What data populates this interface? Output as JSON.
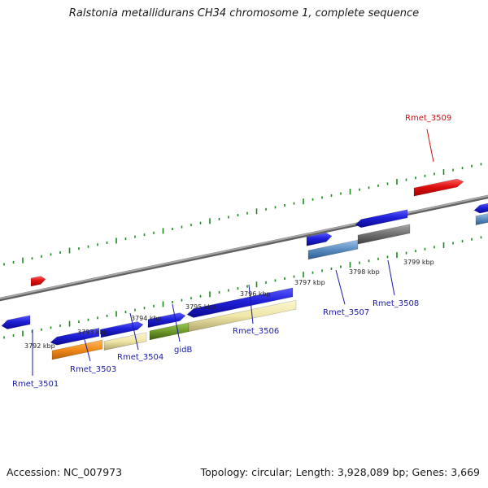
{
  "title": "Ralstonia metallidurans CH34 chromosome 1, complete sequence",
  "footer": {
    "accession": "Accession: NC_007973",
    "summary": "Topology: circular; Length: 3,928,089 bp; Genes: 3,669"
  },
  "colors": {
    "backbone": "#8c8c8c",
    "tick_green": "#1a8a1a",
    "gene_blue": "#1f1fd8",
    "gene_red": "#e01010",
    "orange": "#f08a1a",
    "khaki": "#f0e6a8",
    "olive": "#6e9a2a",
    "steel": "#5a8cc0",
    "gray": "#707070",
    "label_blue": "#1a1aa8",
    "label_red": "#cc1111"
  },
  "kbp_labels": [
    "3792 kbp",
    "3793 kbp",
    "3794 kbp",
    "3795 kbp",
    "3796 kbp",
    "3797 kbp",
    "3798 kbp",
    "3799 kbp"
  ],
  "genes": [
    {
      "label": "Rmet_3501",
      "color": "label_blue"
    },
    {
      "label": "Rmet_3503",
      "color": "label_blue"
    },
    {
      "label": "Rmet_3504",
      "color": "label_blue"
    },
    {
      "label": "gidB",
      "color": "label_blue"
    },
    {
      "label": "Rmet_3506",
      "color": "label_blue"
    },
    {
      "label": "Rmet_3507",
      "color": "label_blue"
    },
    {
      "label": "Rmet_3508",
      "color": "label_blue"
    },
    {
      "label": "Rmet_3509",
      "color": "label_red"
    }
  ]
}
